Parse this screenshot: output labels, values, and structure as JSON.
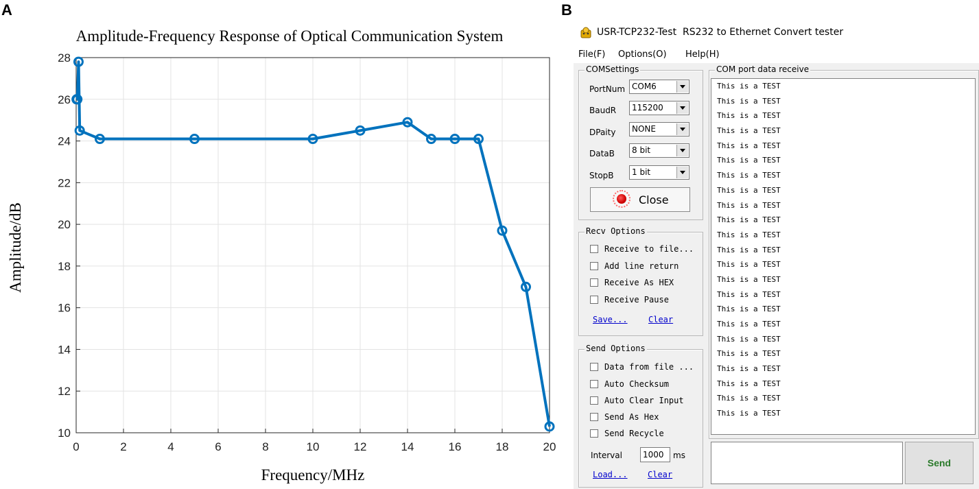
{
  "panel_a_letter": "A",
  "panel_b_letter": "B",
  "chart_data": {
    "type": "line",
    "title": "Amplitude-Frequency Response of Optical Communication System",
    "xlabel": "Frequency/MHz",
    "ylabel": "Amplitude/dB",
    "xlim": [
      0,
      20
    ],
    "ylim": [
      10,
      28
    ],
    "xticks": [
      0,
      2,
      4,
      6,
      8,
      10,
      12,
      14,
      16,
      18,
      20
    ],
    "yticks": [
      10,
      12,
      14,
      16,
      18,
      20,
      22,
      24,
      26,
      28
    ],
    "grid": true,
    "series": [
      {
        "name": "Amplitude",
        "color": "#0072bd",
        "marker": "circle",
        "x": [
          0.02,
          0.05,
          0.1,
          0.15,
          1,
          5,
          10,
          12,
          14,
          15,
          16,
          17,
          18,
          19,
          20
        ],
        "y": [
          26.0,
          26.0,
          27.8,
          24.5,
          24.1,
          24.1,
          24.1,
          24.5,
          24.9,
          24.1,
          24.1,
          24.1,
          19.7,
          17.0,
          10.3
        ]
      }
    ]
  },
  "app": {
    "title": "USR-TCP232-Test  RS232 to Ethernet Convert tester",
    "menu": [
      "File(F)",
      "Options(O)",
      "Help(H)"
    ],
    "com_settings": {
      "title": "COMSettings",
      "fields": [
        {
          "label": "PortNum",
          "value": "COM6"
        },
        {
          "label": "BaudR",
          "value": "115200"
        },
        {
          "label": "DPaity",
          "value": "NONE"
        },
        {
          "label": "DataB",
          "value": "8 bit"
        },
        {
          "label": "StopB",
          "value": "1 bit"
        }
      ],
      "close_label": "Close"
    },
    "recv_options": {
      "title": "Recv Options",
      "checks": [
        "Receive to file...",
        "Add line return",
        "Receive As HEX",
        "Receive Pause"
      ],
      "save_label": "Save...",
      "clear_label": "Clear"
    },
    "send_options": {
      "title": "Send Options",
      "checks": [
        "Data from file ...",
        "Auto Checksum",
        "Auto Clear Input",
        "Send As Hex",
        "Send Recycle"
      ],
      "interval_label": "Interval",
      "interval_value": "1000",
      "interval_unit": "ms",
      "load_label": "Load...",
      "clear_label": "Clear"
    },
    "receive_panel": {
      "title": "COM port data receive",
      "lines": [
        "This is a TEST",
        "This is a TEST",
        "This is a TEST",
        "This is a TEST",
        "This is a TEST",
        "This is a TEST",
        "This is a TEST",
        "This is a TEST",
        "This is a TEST",
        "This is a TEST",
        "This is a TEST",
        "This is a TEST",
        "This is a TEST",
        "This is a TEST",
        "This is a TEST",
        "This is a TEST",
        "This is a TEST",
        "This is a TEST",
        "This is a TEST",
        "This is a TEST",
        "This is a TEST",
        "This is a TEST",
        "This is a TEST"
      ]
    },
    "send_input_value": "",
    "send_label": "Send"
  }
}
